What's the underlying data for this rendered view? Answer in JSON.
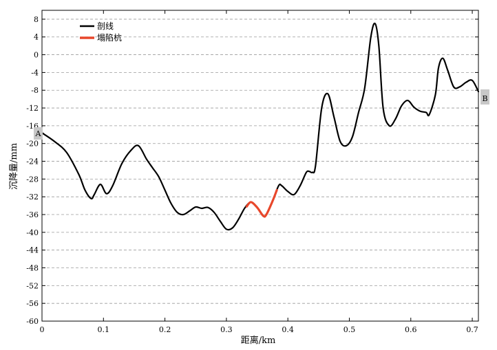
{
  "chart_data": {
    "type": "line",
    "xlabel": "距离/km",
    "ylabel": "沉降量/mm",
    "xlim": [
      0,
      0.71
    ],
    "ylim": [
      -60,
      10
    ],
    "x_ticks": [
      "0",
      "0.1",
      "0.2",
      "0.3",
      "0.4",
      "0.5",
      "0.6",
      "0.7"
    ],
    "y_ticks": [
      "8",
      "4",
      "0",
      "-4",
      "-8",
      "-12",
      "-16",
      "-20",
      "-24",
      "-28",
      "-32",
      "-36",
      "-40",
      "-44",
      "-48",
      "-52",
      "-56",
      "-60"
    ],
    "grid": "horizontal-dashed",
    "legend_position": "top-left",
    "endpoints": {
      "start": "A",
      "end": "B"
    },
    "series": [
      {
        "name": "剖线",
        "color": "#000000",
        "x": [
          0,
          0.02,
          0.04,
          0.06,
          0.07,
          0.08,
          0.085,
          0.095,
          0.105,
          0.115,
          0.13,
          0.145,
          0.157,
          0.17,
          0.18,
          0.19,
          0.2,
          0.21,
          0.22,
          0.23,
          0.24,
          0.25,
          0.26,
          0.27,
          0.28,
          0.29,
          0.3,
          0.31,
          0.32,
          0.33,
          0.34,
          0.35,
          0.36,
          0.365,
          0.375,
          0.385,
          0.39,
          0.4,
          0.41,
          0.42,
          0.43,
          0.435,
          0.44,
          0.445,
          0.455,
          0.465,
          0.475,
          0.485,
          0.495,
          0.505,
          0.515,
          0.525,
          0.535,
          0.542,
          0.548,
          0.555,
          0.565,
          0.575,
          0.585,
          0.595,
          0.605,
          0.615,
          0.625,
          0.63,
          0.64,
          0.645,
          0.652,
          0.66,
          0.67,
          0.68,
          0.69,
          0.7,
          0.71
        ],
        "y": [
          -17.6,
          -19.5,
          -22,
          -27,
          -30.5,
          -32.4,
          -31.5,
          -29.2,
          -31.3,
          -29.5,
          -24.5,
          -21.5,
          -20.5,
          -23.5,
          -25.5,
          -27.5,
          -30.5,
          -33.5,
          -35.5,
          -36,
          -35.2,
          -34.3,
          -34.6,
          -34.4,
          -35.5,
          -37.5,
          -39.3,
          -39,
          -37,
          -34.5,
          -33.2,
          -34.4,
          -36.3,
          -36,
          -33,
          -29.5,
          -29.5,
          -30.8,
          -31.5,
          -29.5,
          -26.5,
          -26.3,
          -26.5,
          -25,
          -12,
          -8.8,
          -14,
          -19.5,
          -20.5,
          -18.5,
          -13,
          -7.5,
          4,
          7,
          2,
          -12,
          -16,
          -14.5,
          -11.5,
          -10.3,
          -11.8,
          -12.7,
          -13,
          -13.5,
          -9,
          -3,
          -0.8,
          -3.5,
          -7.3,
          -7.2,
          -6.2,
          -5.8,
          -8.3
        ]
      },
      {
        "name": "塌陷杭",
        "color": "#e8472b",
        "x": [
          0.333,
          0.34,
          0.35,
          0.36,
          0.365,
          0.375,
          0.382
        ],
        "y": [
          -34.2,
          -33.2,
          -34.4,
          -36.3,
          -36,
          -33,
          -30.5
        ]
      }
    ]
  }
}
